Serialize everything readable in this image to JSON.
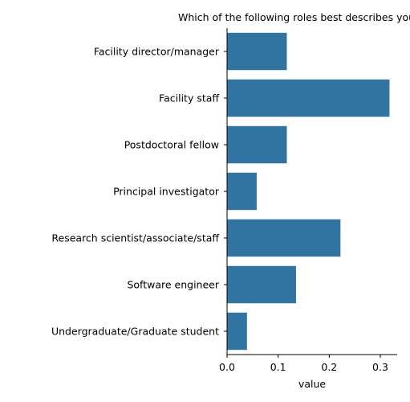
{
  "chart_data": {
    "type": "bar",
    "orientation": "horizontal",
    "title": "Which of the following roles best describes you?",
    "xlabel": "value",
    "ylabel": "",
    "categories": [
      "Facility director/manager",
      "Facility staff",
      "Postdoctoral fellow",
      "Principal investigator",
      "Research scientist/associate/staff",
      "Software engineer",
      "Undergraduate/Graduate student"
    ],
    "values": [
      0.117,
      0.318,
      0.117,
      0.058,
      0.222,
      0.135,
      0.039
    ],
    "xlim": [
      0,
      0.333
    ],
    "xticks": [
      "0.0",
      "0.1",
      "0.2",
      "0.3"
    ],
    "xtick_values": [
      0,
      0.1,
      0.2,
      0.3
    ],
    "grid": false,
    "bar_color": "#3274a1"
  }
}
